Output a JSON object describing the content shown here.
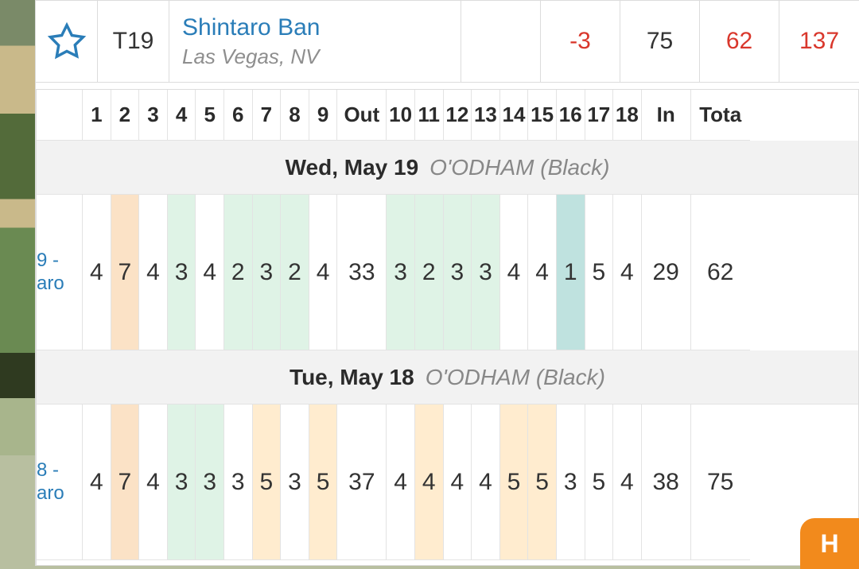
{
  "palette": {
    "link_color": "#2a7db8",
    "muted_color": "#8e8e8e",
    "text_color": "#333333",
    "red_score": "#d9372c",
    "border_color": "#dcdcdc",
    "hl_orange": "#fbe2c6",
    "hl_light_orange": "#ffeccf",
    "hl_green": "#dff3e6",
    "hl_teal": "#bfe2df",
    "title_bg": "#f2f2f2",
    "fab_bg": "#f28a1c"
  },
  "player": {
    "position": "T19",
    "name": "Shintaro Ban",
    "location": "Las Vegas, NV",
    "thru": "",
    "to_par": "-3",
    "r1": "75",
    "r2": "62",
    "total": "137"
  },
  "headers": {
    "label_col": "",
    "holes_front": [
      "1",
      "2",
      "3",
      "4",
      "5",
      "6",
      "7",
      "8",
      "9"
    ],
    "out": "Out",
    "holes_back": [
      "10",
      "11",
      "12",
      "13",
      "14",
      "15",
      "16",
      "17",
      "18"
    ],
    "in": "In",
    "total": "Tota"
  },
  "round_a": {
    "date": "Wed, May 19",
    "course": "O'ODHAM (Black)",
    "row_label_top": "9 -",
    "row_label_bot": "aro",
    "front": [
      "4",
      "7",
      "4",
      "3",
      "4",
      "2",
      "3",
      "2",
      "4"
    ],
    "out": "33",
    "back": [
      "3",
      "2",
      "3",
      "3",
      "4",
      "4",
      "1",
      "5",
      "4"
    ],
    "in": "29",
    "total": "62",
    "front_hl": [
      "",
      "orange",
      "",
      "green",
      "",
      "green",
      "green",
      "green",
      ""
    ],
    "back_hl": [
      "green",
      "green",
      "green",
      "green",
      "",
      "",
      "teal",
      "",
      ""
    ]
  },
  "round_b": {
    "date": "Tue, May 18",
    "course": "O'ODHAM (Black)",
    "row_label_top": "8 -",
    "row_label_bot": "aro",
    "front": [
      "4",
      "7",
      "4",
      "3",
      "3",
      "3",
      "5",
      "3",
      "5"
    ],
    "out": "37",
    "back": [
      "4",
      "4",
      "4",
      "4",
      "5",
      "5",
      "3",
      "5",
      "4"
    ],
    "in": "38",
    "total": "75",
    "front_hl": [
      "",
      "orange",
      "",
      "green",
      "green",
      "",
      "lorange",
      "",
      "lorange"
    ],
    "back_hl": [
      "",
      "lorange",
      "",
      "",
      "lorange",
      "lorange",
      "",
      "",
      ""
    ]
  },
  "fab": {
    "letter": "H"
  }
}
